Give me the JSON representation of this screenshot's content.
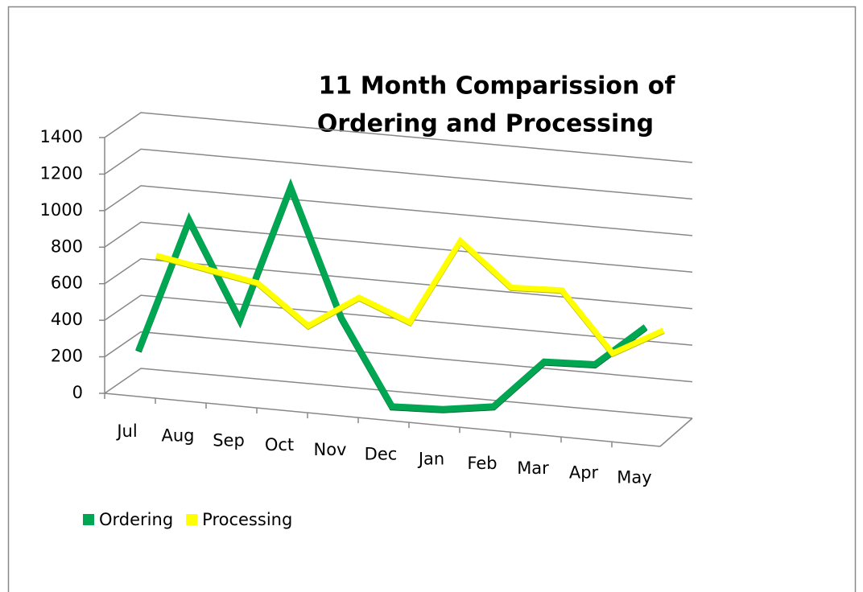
{
  "chart_data": {
    "type": "line",
    "title": [
      "11 Month Comparission of",
      "Ordering and Processing"
    ],
    "categories": [
      "Jul",
      "Aug",
      "Sep",
      "Oct",
      "Nov",
      "Dec",
      "Jan",
      "Feb",
      "Mar",
      "Apr",
      "May"
    ],
    "series": [
      {
        "name": "Ordering",
        "color": "#00a651",
        "values": [
          180,
          920,
          400,
          1150,
          460,
          0,
          10,
          50,
          320,
          330,
          560
        ]
      },
      {
        "name": "Processing",
        "color": "#ffff00",
        "values": [
          710,
          660,
          610,
          400,
          580,
          470,
          940,
          710,
          720,
          400,
          550
        ]
      }
    ],
    "ylim": [
      0,
      1400
    ],
    "yticks": [
      0,
      200,
      400,
      600,
      800,
      1000,
      1200,
      1400
    ],
    "grid": true,
    "legend": "bottom-left"
  }
}
